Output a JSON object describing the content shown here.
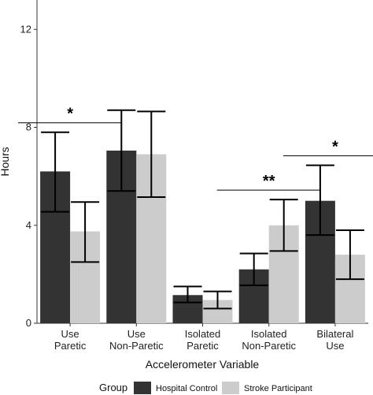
{
  "chart_data": {
    "type": "bar",
    "xlabel": "Accelerometer Variable",
    "ylabel": "Hours",
    "ylim": [
      0,
      13.2
    ],
    "yticks": [
      0,
      4,
      8,
      12
    ],
    "grid": false,
    "legend_position": "bottom",
    "legend_title": "Group",
    "categories": [
      [
        "Use",
        "Paretic"
      ],
      [
        "Use",
        "Non-Paretic"
      ],
      [
        "Isolated",
        "Paretic"
      ],
      [
        "Isolated",
        "Non-Paretic"
      ],
      [
        "Bilateral",
        "Use"
      ]
    ],
    "series": [
      {
        "name": "Hospital Control",
        "color": "#333333",
        "values": [
          6.2,
          7.05,
          1.15,
          2.2,
          5.0
        ],
        "error_low": [
          4.55,
          5.4,
          0.85,
          1.55,
          3.6
        ],
        "error_high": [
          7.8,
          8.7,
          1.5,
          2.85,
          6.45
        ]
      },
      {
        "name": "Stroke Participant",
        "color": "#cccccc",
        "values": [
          3.75,
          6.9,
          0.95,
          4.0,
          2.8
        ],
        "error_low": [
          2.5,
          5.15,
          0.6,
          2.95,
          1.8
        ],
        "error_high": [
          4.95,
          8.65,
          1.3,
          5.05,
          3.8
        ]
      }
    ],
    "annotations": [
      {
        "category_index": 0,
        "label": "*"
      },
      {
        "category_index": 3,
        "label": "**"
      },
      {
        "category_index": 4,
        "label": "*"
      }
    ]
  }
}
